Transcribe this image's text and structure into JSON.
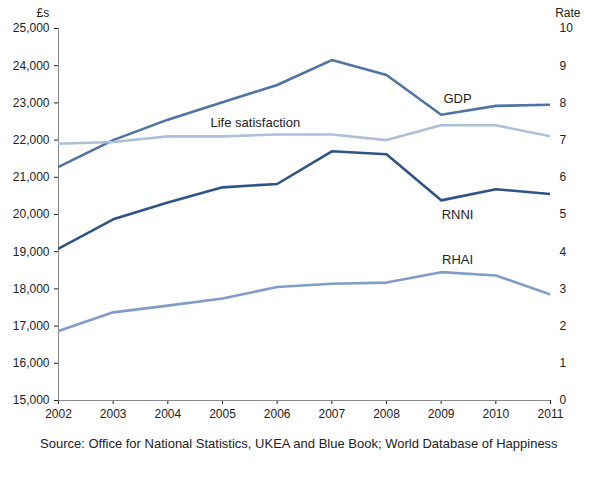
{
  "chart_data": {
    "type": "line",
    "caption": "Source: Office for National Statistics, UKEA and Blue Book; World Database of Happiness",
    "y_label": "£s",
    "y2_label": "Rate",
    "x": [
      2002,
      2003,
      2004,
      2005,
      2006,
      2007,
      2008,
      2009,
      2010,
      2011
    ],
    "xlim": [
      2002,
      2011
    ],
    "xticks": [
      2002,
      2003,
      2004,
      2005,
      2006,
      2007,
      2008,
      2009,
      2010,
      2011
    ],
    "ylim": [
      15000,
      25000
    ],
    "yticks": [
      {
        "value": 15000,
        "label": "15,000"
      },
      {
        "value": 16000,
        "label": "16,000"
      },
      {
        "value": 17000,
        "label": "17,000"
      },
      {
        "value": 18000,
        "label": "18,000"
      },
      {
        "value": 19000,
        "label": "19,000"
      },
      {
        "value": 20000,
        "label": "20,000"
      },
      {
        "value": 21000,
        "label": "21,000"
      },
      {
        "value": 22000,
        "label": "22,000"
      },
      {
        "value": 23000,
        "label": "23,000"
      },
      {
        "value": 24000,
        "label": "24,000"
      },
      {
        "value": 25000,
        "label": "25,000"
      }
    ],
    "y2lim": [
      0,
      10
    ],
    "y2ticks": [
      0,
      1,
      2,
      3,
      4,
      5,
      6,
      7,
      8,
      9,
      10
    ],
    "grid": false,
    "series": [
      {
        "name": "GDP",
        "color": "#4f74a3",
        "values": [
          21280,
          22000,
          22550,
          23020,
          23480,
          24150,
          23750,
          22680,
          22920,
          22950
        ]
      },
      {
        "name": "Life satisfaction",
        "color": "#aebfd8",
        "axis": "y2",
        "values": [
          6.9,
          6.95,
          7.1,
          7.1,
          7.15,
          7.15,
          7.0,
          7.4,
          7.4,
          7.1
        ]
      },
      {
        "name": "RNNI",
        "color": "#2f5384",
        "values": [
          19080,
          19870,
          20320,
          20730,
          20820,
          21700,
          21620,
          20380,
          20680,
          20550
        ]
      },
      {
        "name": "RHAI",
        "color": "#819dc6",
        "values": [
          16870,
          17370,
          17550,
          17740,
          18050,
          18140,
          18170,
          18450,
          18360,
          17850
        ]
      }
    ]
  }
}
